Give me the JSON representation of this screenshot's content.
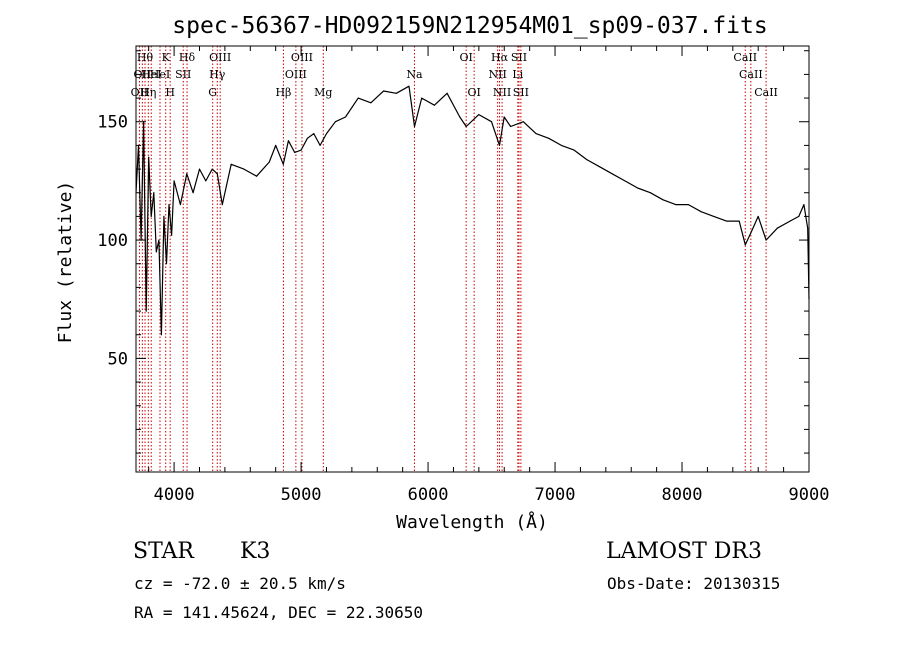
{
  "chart_data": {
    "type": "line",
    "title": "spec-56367-HD092159N212954M01_sp09-037.fits",
    "xlabel": "Wavelength (Å)",
    "ylabel": "Flux (relative)",
    "xlim": [
      3700,
      9000
    ],
    "ylim": [
      2,
      182
    ],
    "x_ticks": [
      4000,
      5000,
      6000,
      7000,
      8000,
      9000
    ],
    "y_ticks": [
      50,
      100,
      150
    ],
    "grid": false,
    "series": [
      {
        "name": "flux",
        "x": [
          3700,
          3720,
          3740,
          3760,
          3780,
          3800,
          3820,
          3840,
          3860,
          3880,
          3900,
          3920,
          3940,
          3960,
          3980,
          4000,
          4050,
          4100,
          4150,
          4200,
          4250,
          4300,
          4340,
          4380,
          4450,
          4550,
          4650,
          4750,
          4800,
          4860,
          4900,
          4950,
          5000,
          5050,
          5100,
          5150,
          5200,
          5270,
          5350,
          5450,
          5550,
          5650,
          5750,
          5850,
          5893,
          5950,
          6050,
          6150,
          6250,
          6300,
          6400,
          6500,
          6563,
          6600,
          6650,
          6750,
          6850,
          6950,
          7050,
          7150,
          7250,
          7350,
          7450,
          7550,
          7650,
          7750,
          7850,
          7950,
          8050,
          8150,
          8250,
          8350,
          8450,
          8498,
          8542,
          8600,
          8662,
          8750,
          8850,
          8920,
          8960,
          8990,
          9000
        ],
        "values": [
          120,
          140,
          100,
          150,
          70,
          135,
          110,
          120,
          95,
          100,
          60,
          110,
          90,
          115,
          102,
          125,
          115,
          128,
          120,
          130,
          125,
          130,
          128,
          115,
          132,
          130,
          127,
          133,
          140,
          132,
          142,
          137,
          138,
          143,
          145,
          140,
          145,
          150,
          152,
          160,
          158,
          163,
          162,
          165,
          148,
          160,
          157,
          162,
          152,
          148,
          153,
          150,
          140,
          152,
          148,
          150,
          145,
          143,
          140,
          138,
          134,
          131,
          128,
          125,
          122,
          120,
          117,
          115,
          115,
          112,
          110,
          108,
          108,
          98,
          103,
          110,
          100,
          105,
          108,
          110,
          115,
          105,
          75
        ]
      }
    ],
    "line_markers": [
      {
        "w": 3727,
        "label": "OII",
        "row": 3
      },
      {
        "w": 3750,
        "label": "OII",
        "row": 2
      },
      {
        "w": 3771,
        "label": "Hθ",
        "row": 1
      },
      {
        "w": 3797,
        "label": "Hη",
        "row": 3
      },
      {
        "w": 3820,
        "label": "HeI",
        "row": 2
      },
      {
        "w": 3889,
        "label": "HeI",
        "row": 2
      },
      {
        "w": 3934,
        "label": "K",
        "row": 1
      },
      {
        "w": 3969,
        "label": "H",
        "row": 3
      },
      {
        "w": 4072,
        "label": "SII",
        "row": 2
      },
      {
        "w": 4102,
        "label": "Hδ",
        "row": 1
      },
      {
        "w": 4304,
        "label": "G",
        "row": 3
      },
      {
        "w": 4340,
        "label": "Hγ",
        "row": 2
      },
      {
        "w": 4363,
        "label": "OIII",
        "row": 1
      },
      {
        "w": 4861,
        "label": "Hβ",
        "row": 3
      },
      {
        "w": 4959,
        "label": "OIII",
        "row": 2
      },
      {
        "w": 5007,
        "label": "OIII",
        "row": 1
      },
      {
        "w": 5175,
        "label": "Mg",
        "row": 3
      },
      {
        "w": 5893,
        "label": "Na",
        "row": 2
      },
      {
        "w": 6300,
        "label": "OI",
        "row": 1
      },
      {
        "w": 6363,
        "label": "OI",
        "row": 3
      },
      {
        "w": 6548,
        "label": "NII",
        "row": 2
      },
      {
        "w": 6563,
        "label": "Hα",
        "row": 1
      },
      {
        "w": 6583,
        "label": "NII",
        "row": 3
      },
      {
        "w": 6707,
        "label": "Li",
        "row": 2
      },
      {
        "w": 6716,
        "label": "SII",
        "row": 1
      },
      {
        "w": 6731,
        "label": "SII",
        "row": 3
      },
      {
        "w": 8498,
        "label": "CaII",
        "row": 1
      },
      {
        "w": 8542,
        "label": "CaII",
        "row": 2
      },
      {
        "w": 8662,
        "label": "CaII",
        "row": 3
      }
    ],
    "annotation_color": "#cc0000"
  },
  "info": {
    "class": "STAR",
    "subclass": "K3",
    "survey": "LAMOST DR3",
    "cz": "cz = -72.0 ± 20.5 km/s",
    "obs_date": "Obs-Date: 20130315",
    "radec": "RA = 141.45624, DEC =  22.30650"
  }
}
